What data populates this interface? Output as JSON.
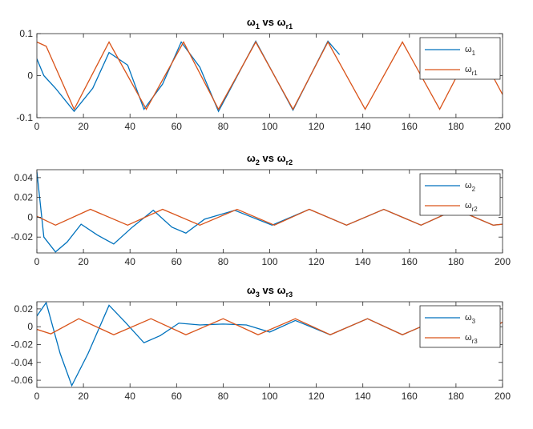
{
  "chart_data": [
    {
      "type": "line",
      "title": {
        "symbol": "ω",
        "sub1": "1",
        "mid": " vs ",
        "sub2": "r1"
      },
      "xlim": [
        0,
        200
      ],
      "ylim": [
        -0.1,
        0.1
      ],
      "xticks": [
        "0",
        "20",
        "40",
        "60",
        "80",
        "100",
        "120",
        "140",
        "160",
        "180",
        "200"
      ],
      "yticks": [
        {
          "v": 0.1,
          "label": "0.1"
        },
        {
          "v": 0,
          "label": "0"
        },
        {
          "v": -0.1,
          "label": "-0.1"
        }
      ],
      "legend_position": "top-right",
      "series": [
        {
          "name": {
            "symbol": "ω",
            "sub": "1"
          },
          "color": "#0072BD",
          "points": [
            [
              0,
              0.04
            ],
            [
              3,
              0.0
            ],
            [
              8,
              -0.03
            ],
            [
              16,
              -0.085
            ],
            [
              24,
              -0.03
            ],
            [
              31,
              0.055
            ],
            [
              39,
              0.025
            ],
            [
              46,
              -0.08
            ],
            [
              54,
              -0.02
            ],
            [
              62,
              0.08
            ],
            [
              70,
              0.02
            ],
            [
              78,
              -0.085
            ],
            [
              94,
              0.082
            ],
            [
              110,
              -0.082
            ],
            [
              125,
              0.082
            ],
            [
              130,
              0.05
            ]
          ]
        },
        {
          "name": {
            "symbol": "ω",
            "sub": "r1"
          },
          "color": "#D95319",
          "points": [
            [
              0,
              0.08
            ],
            [
              4,
              0.07
            ],
            [
              16,
              -0.08
            ],
            [
              31,
              0.08
            ],
            [
              47,
              -0.08
            ],
            [
              63,
              0.08
            ],
            [
              78,
              -0.08
            ],
            [
              94,
              0.08
            ],
            [
              110,
              -0.08
            ],
            [
              125,
              0.08
            ],
            [
              141,
              -0.08
            ],
            [
              157,
              0.08
            ],
            [
              173,
              -0.08
            ],
            [
              188,
              0.08
            ],
            [
              200,
              -0.045
            ]
          ]
        }
      ]
    },
    {
      "type": "line",
      "title": {
        "symbol": "ω",
        "sub1": "2",
        "mid": " vs ",
        "sub2": "r2"
      },
      "xlim": [
        0,
        200
      ],
      "ylim": [
        -0.036,
        0.048
      ],
      "xticks": [
        "0",
        "20",
        "40",
        "60",
        "80",
        "100",
        "120",
        "140",
        "160",
        "180",
        "200"
      ],
      "yticks": [
        {
          "v": 0.04,
          "label": "0.04"
        },
        {
          "v": 0.02,
          "label": "0.02"
        },
        {
          "v": 0,
          "label": "0"
        },
        {
          "v": -0.02,
          "label": "-0.02"
        }
      ],
      "legend_position": "top-right",
      "series": [
        {
          "name": {
            "symbol": "ω",
            "sub": "2"
          },
          "color": "#0072BD",
          "points": [
            [
              0,
              0.046
            ],
            [
              3,
              -0.02
            ],
            [
              8,
              -0.035
            ],
            [
              13,
              -0.025
            ],
            [
              19,
              -0.007
            ],
            [
              26,
              -0.018
            ],
            [
              33,
              -0.027
            ],
            [
              41,
              -0.01
            ],
            [
              50,
              0.007
            ],
            [
              58,
              -0.01
            ],
            [
              64,
              -0.016
            ],
            [
              72,
              -0.002
            ],
            [
              85,
              0.007
            ],
            [
              101,
              -0.008
            ],
            [
              117,
              0.008
            ],
            [
              133,
              -0.008
            ],
            [
              149,
              0.008
            ],
            [
              165,
              -0.008
            ],
            [
              180,
              0.008
            ],
            [
              196,
              -0.008
            ],
            [
              200,
              -0.007
            ]
          ]
        },
        {
          "name": {
            "symbol": "ω",
            "sub": "r2"
          },
          "color": "#D95319",
          "points": [
            [
              0,
              0.001
            ],
            [
              8,
              -0.008
            ],
            [
              23,
              0.008
            ],
            [
              39,
              -0.008
            ],
            [
              54,
              0.008
            ],
            [
              70,
              -0.008
            ],
            [
              86,
              0.008
            ],
            [
              102,
              -0.008
            ],
            [
              117,
              0.008
            ],
            [
              133,
              -0.008
            ],
            [
              149,
              0.008
            ],
            [
              165,
              -0.008
            ],
            [
              180,
              0.008
            ],
            [
              196,
              -0.008
            ],
            [
              200,
              -0.007
            ]
          ]
        }
      ]
    },
    {
      "type": "line",
      "title": {
        "symbol": "ω",
        "sub1": "3",
        "mid": " vs ",
        "sub2": "r3"
      },
      "xlim": [
        0,
        200
      ],
      "ylim": [
        -0.068,
        0.028
      ],
      "xticks": [
        "0",
        "20",
        "40",
        "60",
        "80",
        "100",
        "120",
        "140",
        "160",
        "180",
        "200"
      ],
      "yticks": [
        {
          "v": 0.02,
          "label": "0.02"
        },
        {
          "v": 0,
          "label": "0"
        },
        {
          "v": -0.02,
          "label": "-0.02"
        },
        {
          "v": -0.04,
          "label": "-0.04"
        },
        {
          "v": -0.06,
          "label": "-0.06"
        }
      ],
      "legend_position": "top-right",
      "series": [
        {
          "name": {
            "symbol": "ω",
            "sub": "3"
          },
          "color": "#0072BD",
          "points": [
            [
              0,
              0.012
            ],
            [
              4,
              0.027
            ],
            [
              10,
              -0.03
            ],
            [
              15,
              -0.066
            ],
            [
              22,
              -0.03
            ],
            [
              31,
              0.024
            ],
            [
              38,
              0.005
            ],
            [
              46,
              -0.018
            ],
            [
              53,
              -0.01
            ],
            [
              61,
              0.004
            ],
            [
              70,
              0.002
            ],
            [
              80,
              0.003
            ],
            [
              90,
              0.002
            ],
            [
              100,
              -0.006
            ],
            [
              111,
              0.007
            ],
            [
              126,
              -0.009
            ],
            [
              142,
              0.009
            ],
            [
              157,
              -0.009
            ],
            [
              173,
              0.009
            ],
            [
              189,
              -0.009
            ],
            [
              200,
              0.005
            ]
          ]
        },
        {
          "name": {
            "symbol": "ω",
            "sub": "r3"
          },
          "color": "#D95319",
          "points": [
            [
              0,
              -0.003
            ],
            [
              6,
              -0.008
            ],
            [
              18,
              0.009
            ],
            [
              33,
              -0.009
            ],
            [
              49,
              0.009
            ],
            [
              64,
              -0.009
            ],
            [
              80,
              0.009
            ],
            [
              95,
              -0.009
            ],
            [
              111,
              0.009
            ],
            [
              126,
              -0.009
            ],
            [
              142,
              0.009
            ],
            [
              157,
              -0.009
            ],
            [
              173,
              0.009
            ],
            [
              189,
              -0.009
            ],
            [
              200,
              0.005
            ]
          ]
        }
      ]
    }
  ]
}
